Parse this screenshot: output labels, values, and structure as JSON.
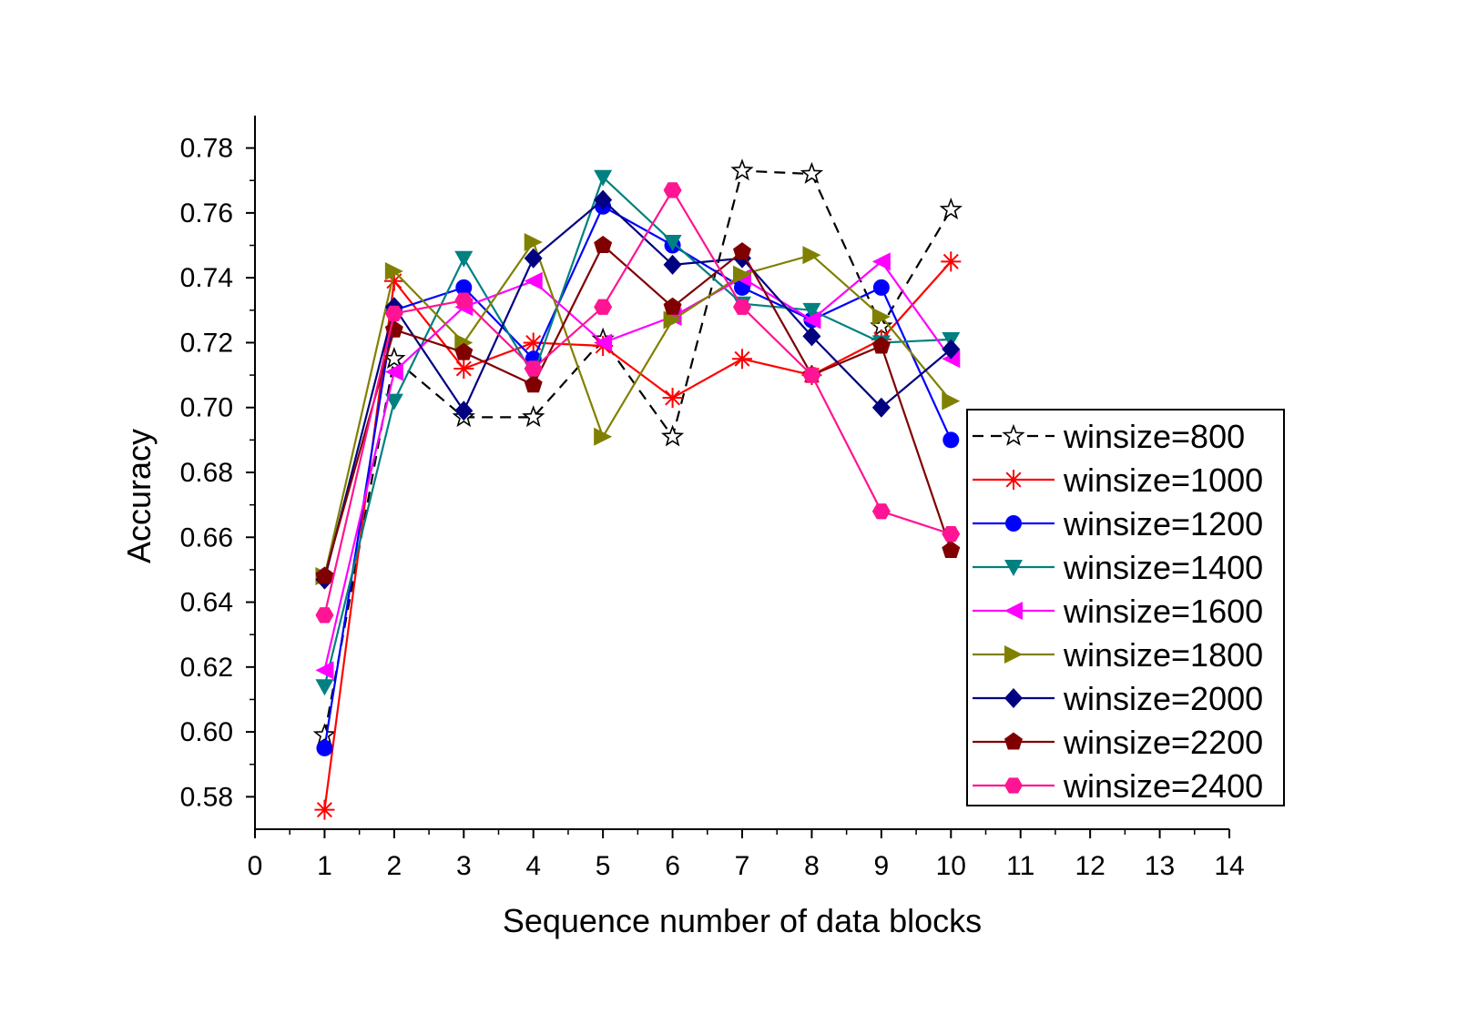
{
  "chart_data": {
    "type": "line",
    "title": "",
    "xlabel": "Sequence number of data blocks",
    "ylabel": "Accuracy",
    "xlim": [
      0,
      14
    ],
    "ylim": [
      0.57,
      0.79
    ],
    "x_ticks": [
      0,
      1,
      2,
      3,
      4,
      5,
      6,
      7,
      8,
      9,
      10,
      11,
      12,
      13,
      14
    ],
    "y_ticks": [
      0.58,
      0.6,
      0.62,
      0.64,
      0.66,
      0.68,
      0.7,
      0.72,
      0.74,
      0.76,
      0.78
    ],
    "x_tick_labels": [
      "0",
      "1",
      "2",
      "3",
      "4",
      "5",
      "6",
      "7",
      "8",
      "9",
      "10",
      "11",
      "12",
      "13",
      "14"
    ],
    "y_tick_labels": [
      "0.58",
      "0.60",
      "0.62",
      "0.64",
      "0.66",
      "0.68",
      "0.70",
      "0.72",
      "0.74",
      "0.76",
      "0.78"
    ],
    "grid": false,
    "legend_position": "right",
    "x": [
      1,
      2,
      3,
      4,
      5,
      6,
      7,
      8,
      9,
      10
    ],
    "series": [
      {
        "name": "winsize=800",
        "color": "#000000",
        "dash": true,
        "marker": "star",
        "values": [
          0.599,
          0.715,
          0.697,
          0.697,
          0.721,
          0.691,
          0.773,
          0.772,
          0.725,
          0.761
        ]
      },
      {
        "name": "winsize=1000",
        "color": "#ff0000",
        "dash": false,
        "marker": "asterisk",
        "values": [
          0.576,
          0.739,
          0.712,
          0.72,
          0.719,
          0.703,
          0.715,
          0.71,
          0.721,
          0.745
        ]
      },
      {
        "name": "winsize=1200",
        "color": "#0000ff",
        "dash": false,
        "marker": "circle",
        "values": [
          0.595,
          0.73,
          0.737,
          0.715,
          0.762,
          0.75,
          0.737,
          0.727,
          0.737,
          0.69
        ]
      },
      {
        "name": "winsize=1400",
        "color": "#008080",
        "dash": false,
        "marker": "triangle-down",
        "values": [
          0.614,
          0.702,
          0.746,
          0.71,
          0.771,
          0.751,
          0.732,
          0.73,
          0.72,
          0.721
        ]
      },
      {
        "name": "winsize=1600",
        "color": "#ff00ff",
        "dash": false,
        "marker": "triangle-left",
        "values": [
          0.619,
          0.711,
          0.731,
          0.739,
          0.72,
          0.728,
          0.74,
          0.727,
          0.745,
          0.715
        ]
      },
      {
        "name": "winsize=1800",
        "color": "#808000",
        "dash": false,
        "marker": "triangle-right",
        "values": [
          0.648,
          0.742,
          0.72,
          0.751,
          0.691,
          0.727,
          0.741,
          0.747,
          0.728,
          0.702
        ]
      },
      {
        "name": "winsize=2000",
        "color": "#000080",
        "dash": false,
        "marker": "diamond",
        "values": [
          0.647,
          0.731,
          0.699,
          0.746,
          0.764,
          0.744,
          0.746,
          0.722,
          0.7,
          0.718
        ]
      },
      {
        "name": "winsize=2200",
        "color": "#800000",
        "dash": false,
        "marker": "pentagon",
        "values": [
          0.648,
          0.724,
          0.717,
          0.707,
          0.75,
          0.731,
          0.748,
          0.71,
          0.719,
          0.656
        ]
      },
      {
        "name": "winsize=2400",
        "color": "#ff1493",
        "dash": false,
        "marker": "hexagon",
        "values": [
          0.636,
          0.729,
          0.733,
          0.712,
          0.731,
          0.767,
          0.731,
          0.71,
          0.668,
          0.661
        ]
      }
    ]
  }
}
